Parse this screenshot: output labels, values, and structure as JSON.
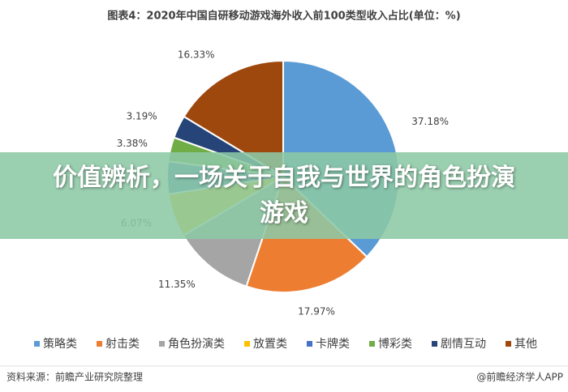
{
  "chart_data": {
    "type": "pie",
    "title": "图表4：2020年中国自研移动游戏海外收入前100类型收入占比(单位：%)",
    "categories": [
      "策略类",
      "射击类",
      "角色扮演类",
      "放置类",
      "卡牌类",
      "博彩类",
      "剧情互动",
      "其他"
    ],
    "values": [
      37.18,
      17.97,
      11.35,
      6.07,
      4.53,
      3.38,
      3.19,
      16.33
    ],
    "value_labels": [
      "37.18%",
      "17.97%",
      "11.35%",
      "6.07%",
      null,
      "3.38%",
      "3.19%",
      "16.33%"
    ],
    "colors": [
      "#5b9bd5",
      "#ed7d31",
      "#a5a5a5",
      "#ffc000",
      "#4472c4",
      "#70ad47",
      "#264478",
      "#9e480e"
    ],
    "legend": "bottom",
    "source": "资料来源：前瞻产业研究院整理",
    "credit": "@前瞻经济学人APP"
  },
  "banner": {
    "title": "价值辨析，一场关于自我与世界的角色扮演游戏"
  }
}
